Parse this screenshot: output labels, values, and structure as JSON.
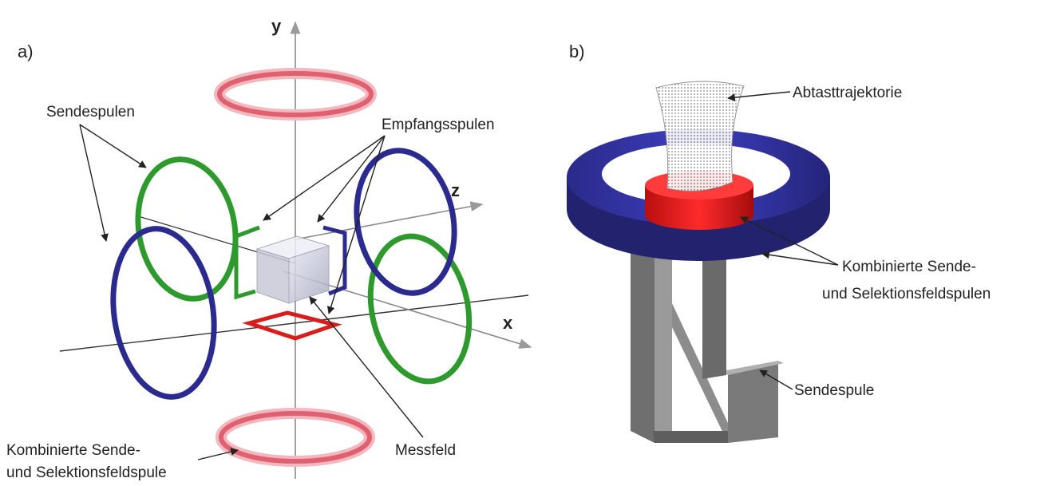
{
  "panel_a": {
    "letter": "a)",
    "axis_x": "x",
    "axis_y": "y",
    "axis_z": "z",
    "label_sendespulen": "Sendespulen",
    "label_empfangsspulen": "Empfangsspulen",
    "label_messfeld": "Messfeld",
    "label_combined_line1": "Kombinierte Sende-",
    "label_combined_line2": "und Selektionsfeldspule"
  },
  "panel_b": {
    "letter": "b)",
    "label_trajectory": "Abtasttrajektorie",
    "label_combined_line1": "Kombinierte Sende-",
    "label_combined_line2": "und Selektionsfeldspulen",
    "label_sendespule": "Sendespule"
  },
  "colors": {
    "green_coil": "#2e9a2e",
    "blue_coil": "#2b2b8f",
    "red_coil": "#d91c1c",
    "pink_coil": "#e06070",
    "gray_coil": "#8a8a8a"
  }
}
